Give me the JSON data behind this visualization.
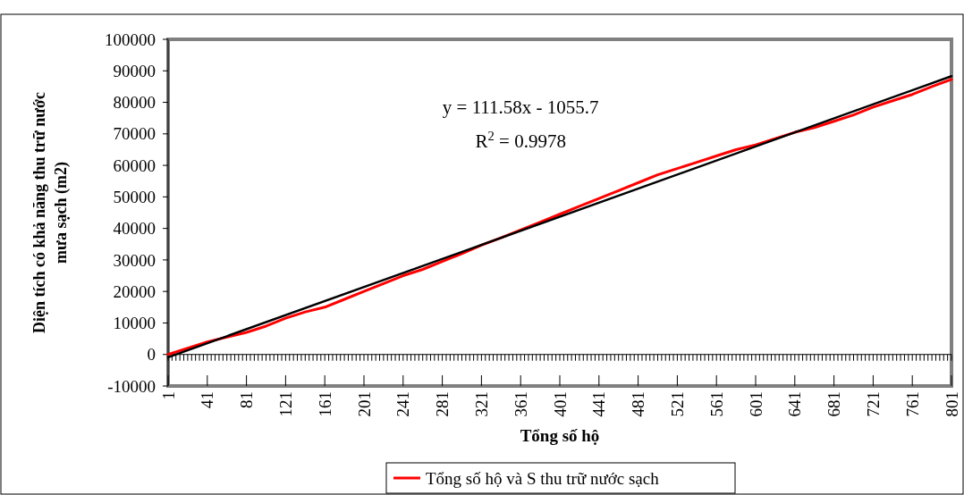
{
  "chart_data": {
    "type": "line",
    "xlabel": "Tổng số hộ",
    "ylabel": "Diện tích có khả năng thu trữ nước mưa sạch (m2)",
    "xlim": [
      1,
      801
    ],
    "xticks": [
      1,
      41,
      81,
      121,
      161,
      201,
      241,
      281,
      321,
      361,
      401,
      441,
      481,
      521,
      561,
      601,
      641,
      681,
      721,
      761,
      801
    ],
    "ylim": [
      -10000,
      100000
    ],
    "yticks": [
      -10000,
      0,
      10000,
      20000,
      30000,
      40000,
      50000,
      60000,
      70000,
      80000,
      90000,
      100000
    ],
    "legend": "bottom",
    "marker": "none",
    "line_style": "solid",
    "annotations": [
      "y = 111.58x - 1055.7",
      "R$^{2}$ = 0.9978"
    ],
    "series": [
      {
        "name": "Tổng số hộ và S thu trữ nước sạch",
        "color": "#ff0000",
        "x": [
          1,
          21,
          41,
          61,
          81,
          101,
          121,
          141,
          161,
          181,
          201,
          221,
          241,
          261,
          281,
          301,
          321,
          341,
          361,
          381,
          401,
          421,
          441,
          461,
          481,
          501,
          521,
          541,
          561,
          581,
          601,
          621,
          641,
          661,
          681,
          701,
          721,
          741,
          761,
          781,
          801
        ],
        "values": [
          0,
          2000,
          4000,
          5500,
          7000,
          9000,
          11500,
          13500,
          15000,
          17500,
          20000,
          22500,
          25000,
          27000,
          29500,
          32000,
          34700,
          37000,
          39500,
          42000,
          44500,
          47000,
          49500,
          52000,
          54500,
          57000,
          59000,
          61000,
          63000,
          65000,
          66500,
          68500,
          70500,
          72000,
          74000,
          76000,
          78500,
          80500,
          82500,
          85000,
          87300
        ]
      },
      {
        "type": "line",
        "color": "#000000",
        "x": [
          1,
          801
        ],
        "values": [
          -900,
          88300
        ]
      }
    ]
  }
}
